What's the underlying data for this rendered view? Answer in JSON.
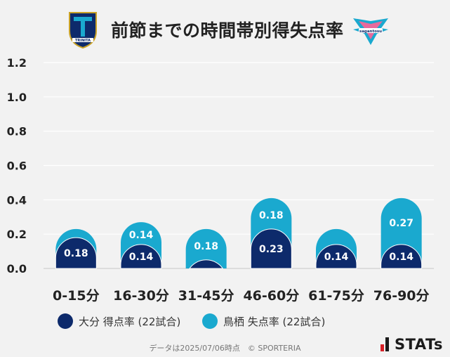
{
  "header": {
    "title": "前節までの時間帯別得失点率"
  },
  "chart_data": {
    "type": "bar",
    "title": "前節までの時間帯別得失点率",
    "categories": [
      "0-15分",
      "16-30分",
      "31-45分",
      "46-60分",
      "61-75分",
      "76-90分"
    ],
    "series": [
      {
        "name": "大分 得点率 (22試合)",
        "values": [
          0.18,
          0.14,
          0.05,
          0.23,
          0.14,
          0.14
        ],
        "labels": [
          "0.18",
          "0.14",
          "",
          "0.23",
          "0.14",
          "0.14"
        ],
        "color": "#0d2a6b"
      },
      {
        "name": "鳥栖 失点率 (22試合)",
        "values": [
          0.23,
          0.27,
          0.23,
          0.41,
          0.23,
          0.41
        ],
        "labels": [
          "",
          "0.14",
          "0.18",
          "0.18",
          "",
          "0.27"
        ],
        "color": "#1aa9cf"
      }
    ],
    "yticks": [
      "1.2",
      "1.0",
      "0.8",
      "0.6",
      "0.4",
      "0.2",
      "0.0"
    ],
    "ylim": [
      0,
      1.2
    ],
    "grid": true,
    "legend_position": "bottom"
  },
  "legend": {
    "items": [
      {
        "label": "大分 得点率 (22試合)",
        "color": "#0d2a6b"
      },
      {
        "label": "鳥栖 失点率 (22試合)",
        "color": "#1aa9cf"
      }
    ]
  },
  "footer": {
    "credit": "データは2025/07/06時点　© SPORTERIA",
    "brand": "STATs"
  },
  "logos": {
    "left_text": "TRINITA",
    "right_text": "sagantosu"
  }
}
